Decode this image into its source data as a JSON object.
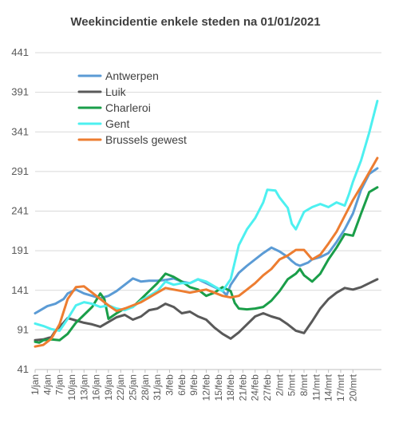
{
  "chart_data": {
    "type": "line",
    "title": "Weekincidentie  enkele steden na 01/01/2021",
    "xlabel": "",
    "ylabel": "",
    "ylim": [
      41,
      441
    ],
    "yticks": [
      41,
      91,
      141,
      191,
      241,
      291,
      341,
      391,
      441
    ],
    "grid": true,
    "legend_position": "top-left",
    "x_tick_labels": [
      "1/jan",
      "4/jan",
      "7/jan",
      "10/jan",
      "13/jan",
      "16/jan",
      "19/jan",
      "22/jan",
      "25/jan",
      "28/jan",
      "31/jan",
      "3/feb",
      "6/feb",
      "9/feb",
      "12/feb",
      "15/feb",
      "18/feb",
      "21/feb",
      "24/feb",
      "27/feb",
      "2/mrt",
      "5/mrt",
      "8/mrt",
      "11/mrt",
      "14/mrt",
      "17/mrt",
      "20/mrt"
    ],
    "x_step_days": 3,
    "series": [
      {
        "name": "Antwerpen",
        "color": "#5b9bd5",
        "values": [
          {
            "x": 0,
            "y": 112
          },
          {
            "x": 1,
            "y": 115
          },
          {
            "x": 3,
            "y": 121
          },
          {
            "x": 5,
            "y": 124
          },
          {
            "x": 7,
            "y": 130
          },
          {
            "x": 8,
            "y": 137
          },
          {
            "x": 10,
            "y": 142
          },
          {
            "x": 12,
            "y": 137
          },
          {
            "x": 14,
            "y": 134
          },
          {
            "x": 16,
            "y": 131
          },
          {
            "x": 18,
            "y": 134
          },
          {
            "x": 20,
            "y": 140
          },
          {
            "x": 22,
            "y": 148
          },
          {
            "x": 24,
            "y": 156
          },
          {
            "x": 26,
            "y": 152
          },
          {
            "x": 28,
            "y": 153
          },
          {
            "x": 30,
            "y": 153
          },
          {
            "x": 32,
            "y": 154
          },
          {
            "x": 34,
            "y": 156
          },
          {
            "x": 36,
            "y": 152
          },
          {
            "x": 38,
            "y": 150
          },
          {
            "x": 40,
            "y": 155
          },
          {
            "x": 42,
            "y": 150
          },
          {
            "x": 44,
            "y": 145
          },
          {
            "x": 46,
            "y": 140
          },
          {
            "x": 47,
            "y": 135
          },
          {
            "x": 48,
            "y": 148
          },
          {
            "x": 50,
            "y": 163
          },
          {
            "x": 52,
            "y": 172
          },
          {
            "x": 54,
            "y": 180
          },
          {
            "x": 56,
            "y": 188
          },
          {
            "x": 58,
            "y": 195
          },
          {
            "x": 60,
            "y": 190
          },
          {
            "x": 62,
            "y": 183
          },
          {
            "x": 63,
            "y": 178
          },
          {
            "x": 64,
            "y": 174
          },
          {
            "x": 65,
            "y": 172
          },
          {
            "x": 67,
            "y": 176
          },
          {
            "x": 68,
            "y": 180
          },
          {
            "x": 70,
            "y": 183
          },
          {
            "x": 72,
            "y": 188
          },
          {
            "x": 74,
            "y": 202
          },
          {
            "x": 76,
            "y": 218
          },
          {
            "x": 78,
            "y": 238
          },
          {
            "x": 80,
            "y": 268
          },
          {
            "x": 82,
            "y": 288
          },
          {
            "x": 84,
            "y": 295
          }
        ]
      },
      {
        "name": "Luik",
        "color": "#595959",
        "values": [
          {
            "x": 0,
            "y": 78
          },
          {
            "x": 2,
            "y": 79
          },
          {
            "x": 4,
            "y": 82
          },
          {
            "x": 5,
            "y": 90
          },
          {
            "x": 7,
            "y": 100
          },
          {
            "x": 8,
            "y": 106
          },
          {
            "x": 10,
            "y": 103
          },
          {
            "x": 12,
            "y": 100
          },
          {
            "x": 14,
            "y": 98
          },
          {
            "x": 16,
            "y": 95
          },
          {
            "x": 18,
            "y": 101
          },
          {
            "x": 20,
            "y": 107
          },
          {
            "x": 22,
            "y": 110
          },
          {
            "x": 24,
            "y": 104
          },
          {
            "x": 26,
            "y": 108
          },
          {
            "x": 28,
            "y": 116
          },
          {
            "x": 30,
            "y": 118
          },
          {
            "x": 32,
            "y": 124
          },
          {
            "x": 34,
            "y": 120
          },
          {
            "x": 36,
            "y": 112
          },
          {
            "x": 38,
            "y": 114
          },
          {
            "x": 40,
            "y": 108
          },
          {
            "x": 42,
            "y": 104
          },
          {
            "x": 44,
            "y": 94
          },
          {
            "x": 46,
            "y": 86
          },
          {
            "x": 48,
            "y": 80
          },
          {
            "x": 50,
            "y": 88
          },
          {
            "x": 52,
            "y": 98
          },
          {
            "x": 54,
            "y": 108
          },
          {
            "x": 56,
            "y": 112
          },
          {
            "x": 58,
            "y": 108
          },
          {
            "x": 60,
            "y": 105
          },
          {
            "x": 62,
            "y": 98
          },
          {
            "x": 64,
            "y": 90
          },
          {
            "x": 66,
            "y": 87
          },
          {
            "x": 68,
            "y": 102
          },
          {
            "x": 70,
            "y": 118
          },
          {
            "x": 72,
            "y": 130
          },
          {
            "x": 74,
            "y": 138
          },
          {
            "x": 76,
            "y": 144
          },
          {
            "x": 78,
            "y": 142
          },
          {
            "x": 80,
            "y": 145
          },
          {
            "x": 82,
            "y": 150
          },
          {
            "x": 84,
            "y": 155
          }
        ]
      },
      {
        "name": "Charleroi",
        "color": "#1a9e49",
        "values": [
          {
            "x": 0,
            "y": 76
          },
          {
            "x": 1,
            "y": 75
          },
          {
            "x": 2,
            "y": 78
          },
          {
            "x": 4,
            "y": 79
          },
          {
            "x": 6,
            "y": 78
          },
          {
            "x": 8,
            "y": 86
          },
          {
            "x": 10,
            "y": 100
          },
          {
            "x": 12,
            "y": 110
          },
          {
            "x": 14,
            "y": 120
          },
          {
            "x": 16,
            "y": 137
          },
          {
            "x": 17,
            "y": 130
          },
          {
            "x": 18,
            "y": 105
          },
          {
            "x": 20,
            "y": 112
          },
          {
            "x": 22,
            "y": 118
          },
          {
            "x": 24,
            "y": 120
          },
          {
            "x": 26,
            "y": 130
          },
          {
            "x": 28,
            "y": 140
          },
          {
            "x": 30,
            "y": 150
          },
          {
            "x": 32,
            "y": 162
          },
          {
            "x": 34,
            "y": 158
          },
          {
            "x": 36,
            "y": 152
          },
          {
            "x": 38,
            "y": 145
          },
          {
            "x": 40,
            "y": 142
          },
          {
            "x": 42,
            "y": 134
          },
          {
            "x": 44,
            "y": 138
          },
          {
            "x": 46,
            "y": 145
          },
          {
            "x": 48,
            "y": 140
          },
          {
            "x": 49,
            "y": 125
          },
          {
            "x": 50,
            "y": 118
          },
          {
            "x": 52,
            "y": 117
          },
          {
            "x": 54,
            "y": 118
          },
          {
            "x": 56,
            "y": 120
          },
          {
            "x": 58,
            "y": 128
          },
          {
            "x": 60,
            "y": 140
          },
          {
            "x": 62,
            "y": 155
          },
          {
            "x": 64,
            "y": 162
          },
          {
            "x": 65,
            "y": 168
          },
          {
            "x": 66,
            "y": 160
          },
          {
            "x": 68,
            "y": 152
          },
          {
            "x": 70,
            "y": 162
          },
          {
            "x": 72,
            "y": 180
          },
          {
            "x": 74,
            "y": 195
          },
          {
            "x": 76,
            "y": 212
          },
          {
            "x": 78,
            "y": 210
          },
          {
            "x": 80,
            "y": 238
          },
          {
            "x": 82,
            "y": 265
          },
          {
            "x": 84,
            "y": 271
          }
        ]
      },
      {
        "name": "Gent",
        "color": "#4df0f0",
        "values": [
          {
            "x": 0,
            "y": 99
          },
          {
            "x": 2,
            "y": 96
          },
          {
            "x": 4,
            "y": 92
          },
          {
            "x": 6,
            "y": 90
          },
          {
            "x": 8,
            "y": 105
          },
          {
            "x": 10,
            "y": 122
          },
          {
            "x": 12,
            "y": 126
          },
          {
            "x": 14,
            "y": 124
          },
          {
            "x": 16,
            "y": 120
          },
          {
            "x": 18,
            "y": 122
          },
          {
            "x": 20,
            "y": 118
          },
          {
            "x": 22,
            "y": 116
          },
          {
            "x": 24,
            "y": 120
          },
          {
            "x": 26,
            "y": 128
          },
          {
            "x": 28,
            "y": 134
          },
          {
            "x": 30,
            "y": 140
          },
          {
            "x": 32,
            "y": 152
          },
          {
            "x": 34,
            "y": 148
          },
          {
            "x": 36,
            "y": 150
          },
          {
            "x": 38,
            "y": 150
          },
          {
            "x": 40,
            "y": 155
          },
          {
            "x": 42,
            "y": 152
          },
          {
            "x": 44,
            "y": 146
          },
          {
            "x": 46,
            "y": 140
          },
          {
            "x": 48,
            "y": 155
          },
          {
            "x": 50,
            "y": 198
          },
          {
            "x": 52,
            "y": 218
          },
          {
            "x": 54,
            "y": 232
          },
          {
            "x": 56,
            "y": 252
          },
          {
            "x": 57,
            "y": 268
          },
          {
            "x": 59,
            "y": 267
          },
          {
            "x": 60,
            "y": 258
          },
          {
            "x": 62,
            "y": 245
          },
          {
            "x": 63,
            "y": 225
          },
          {
            "x": 64,
            "y": 218
          },
          {
            "x": 66,
            "y": 240
          },
          {
            "x": 68,
            "y": 246
          },
          {
            "x": 70,
            "y": 250
          },
          {
            "x": 72,
            "y": 246
          },
          {
            "x": 74,
            "y": 252
          },
          {
            "x": 76,
            "y": 248
          },
          {
            "x": 77,
            "y": 262
          },
          {
            "x": 78,
            "y": 278
          },
          {
            "x": 80,
            "y": 305
          },
          {
            "x": 82,
            "y": 340
          },
          {
            "x": 84,
            "y": 380
          }
        ]
      },
      {
        "name": "Brussels gewest",
        "color": "#ed7d31",
        "values": [
          {
            "x": 0,
            "y": 70
          },
          {
            "x": 2,
            "y": 72
          },
          {
            "x": 4,
            "y": 80
          },
          {
            "x": 6,
            "y": 98
          },
          {
            "x": 8,
            "y": 130
          },
          {
            "x": 10,
            "y": 145
          },
          {
            "x": 12,
            "y": 146
          },
          {
            "x": 14,
            "y": 138
          },
          {
            "x": 16,
            "y": 130
          },
          {
            "x": 18,
            "y": 122
          },
          {
            "x": 20,
            "y": 115
          },
          {
            "x": 22,
            "y": 118
          },
          {
            "x": 24,
            "y": 122
          },
          {
            "x": 26,
            "y": 126
          },
          {
            "x": 28,
            "y": 132
          },
          {
            "x": 30,
            "y": 138
          },
          {
            "x": 32,
            "y": 144
          },
          {
            "x": 34,
            "y": 142
          },
          {
            "x": 36,
            "y": 140
          },
          {
            "x": 38,
            "y": 138
          },
          {
            "x": 40,
            "y": 140
          },
          {
            "x": 42,
            "y": 142
          },
          {
            "x": 44,
            "y": 138
          },
          {
            "x": 46,
            "y": 134
          },
          {
            "x": 48,
            "y": 132
          },
          {
            "x": 50,
            "y": 134
          },
          {
            "x": 52,
            "y": 142
          },
          {
            "x": 54,
            "y": 150
          },
          {
            "x": 56,
            "y": 160
          },
          {
            "x": 58,
            "y": 168
          },
          {
            "x": 60,
            "y": 180
          },
          {
            "x": 62,
            "y": 185
          },
          {
            "x": 64,
            "y": 192
          },
          {
            "x": 66,
            "y": 192
          },
          {
            "x": 68,
            "y": 180
          },
          {
            "x": 70,
            "y": 186
          },
          {
            "x": 72,
            "y": 200
          },
          {
            "x": 74,
            "y": 215
          },
          {
            "x": 76,
            "y": 235
          },
          {
            "x": 78,
            "y": 255
          },
          {
            "x": 80,
            "y": 272
          },
          {
            "x": 82,
            "y": 290
          },
          {
            "x": 84,
            "y": 308
          }
        ]
      }
    ]
  }
}
